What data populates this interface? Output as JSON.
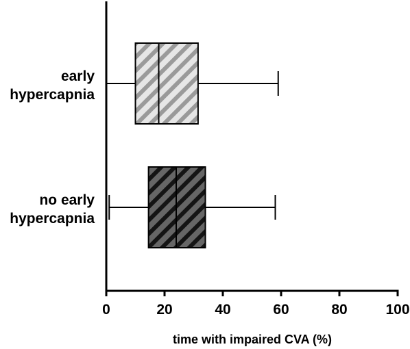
{
  "chart_data": {
    "type": "boxplot",
    "orientation": "horizontal",
    "title": "",
    "xlabel": "time with impaired CVA (%)",
    "ylabel": "",
    "xlim": [
      0,
      100
    ],
    "xticks": [
      "0",
      "20",
      "40",
      "60",
      "80",
      "100"
    ],
    "grid": false,
    "series": [
      {
        "category": "early hypercapnia",
        "label_lines": [
          "early",
          "hypercapnia"
        ],
        "min": 0,
        "q1": 10,
        "median": 18,
        "q3": 31.5,
        "max": 59,
        "fill": "#e6e6e6",
        "hatch": "#9a9a9a"
      },
      {
        "category": "no early hypercapnia",
        "label_lines": [
          "no early",
          "hypercapnia"
        ],
        "min": 1,
        "q1": 14.5,
        "median": 24,
        "q3": 34,
        "max": 58,
        "fill": "#666666",
        "hatch": "#141414"
      }
    ]
  }
}
